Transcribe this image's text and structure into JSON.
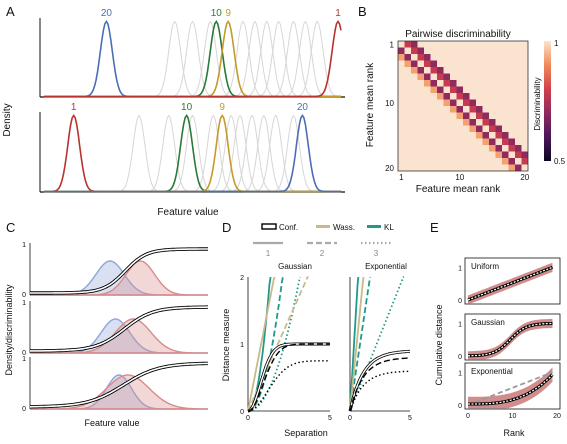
{
  "panels": {
    "A": "A",
    "B": "B",
    "C": "C",
    "D": "D",
    "E": "E"
  },
  "chart_data": [
    {
      "panel": "A",
      "type": "line",
      "ylabel": "Density",
      "xlabel": "Feature value",
      "rows": [
        {
          "grey_centers": [
            0.44,
            0.5,
            0.56,
            0.62,
            0.67,
            0.71,
            0.75,
            0.79,
            0.84,
            0.88,
            0.92
          ],
          "highlight": [
            {
              "name": "20",
              "rank": "20",
              "center": 0.21,
              "color": "#4a6fb5"
            },
            {
              "name": "10",
              "rank": "10",
              "center": 0.58,
              "color": "#2a7a3a"
            },
            {
              "name": "9",
              "rank": "9",
              "center": 0.62,
              "color": "#c49a2a"
            },
            {
              "name": "1",
              "rank": "1",
              "center": 0.99,
              "color": "#b8322e"
            }
          ]
        },
        {
          "grey_centers": [
            0.32,
            0.42,
            0.5,
            0.57,
            0.63,
            0.66,
            0.7,
            0.74,
            0.78,
            0.84
          ],
          "highlight": [
            {
              "name": "1",
              "rank": "1",
              "center": 0.1,
              "color": "#b8322e"
            },
            {
              "name": "10",
              "rank": "10",
              "center": 0.48,
              "color": "#2a7a3a"
            },
            {
              "name": "9",
              "rank": "9",
              "center": 0.6,
              "color": "#c49a2a"
            },
            {
              "name": "20",
              "rank": "20",
              "center": 0.87,
              "color": "#4a6fb5"
            }
          ]
        }
      ]
    },
    {
      "panel": "B",
      "type": "heatmap",
      "title": "Pairwise discriminability",
      "xlabel": "Feature mean rank",
      "ylabel": "Feature mean rank",
      "xticks": [
        "1",
        "10",
        "20"
      ],
      "yticks": [
        "1",
        "10",
        "20"
      ],
      "colorbar_label": "Discriminability",
      "colorbar_ticks": [
        "1",
        "0.5"
      ],
      "size": 20
    },
    {
      "panel": "C",
      "type": "area",
      "ylabel": "Density/discriminability",
      "xlabel": "Feature value",
      "yticks": [
        "1",
        "0"
      ],
      "rows": [
        {
          "mu1": 0.45,
          "mu2": 0.62,
          "sd1": 0.08,
          "sd2": 0.08
        },
        {
          "mu1": 0.48,
          "mu2": 0.58,
          "sd1": 0.08,
          "sd2": 0.1
        },
        {
          "mu1": 0.5,
          "mu2": 0.55,
          "sd1": 0.07,
          "sd2": 0.12
        }
      ],
      "colors": {
        "blue": "#8ea7d8",
        "red": "#d98b8b"
      }
    },
    {
      "panel": "D",
      "type": "line",
      "legend": [
        {
          "name": "Conf.",
          "color": "#000000"
        },
        {
          "name": "Wass.",
          "color": "#c9b98a"
        },
        {
          "name": "KL",
          "color": "#1f9a8a"
        }
      ],
      "styles": [
        {
          "name": "1",
          "dash": "solid"
        },
        {
          "name": "2",
          "dash": "dashed"
        },
        {
          "name": "3",
          "dash": "dotted"
        }
      ],
      "subplots": [
        "Gaussian",
        "Exponential"
      ],
      "ylabel": "Distance measure",
      "xlabel": "Separation",
      "yticks": [
        "0",
        "1",
        "2"
      ],
      "xticks": [
        "0",
        "5"
      ],
      "xlim": [
        0,
        5
      ],
      "ylim": [
        0,
        2
      ]
    },
    {
      "panel": "E",
      "type": "line",
      "ylabel": "Cumulative distance",
      "xlabel": "Rank",
      "subplots": [
        "Uniform",
        "Gaussian",
        "Exponential"
      ],
      "yticks": [
        "0",
        "1"
      ],
      "xticks": [
        "0",
        "10",
        "20"
      ],
      "xlim": [
        0,
        20
      ],
      "ylim": [
        0,
        1.2
      ],
      "colors": {
        "band": "#c97878",
        "dashed": "#999999"
      }
    }
  ]
}
